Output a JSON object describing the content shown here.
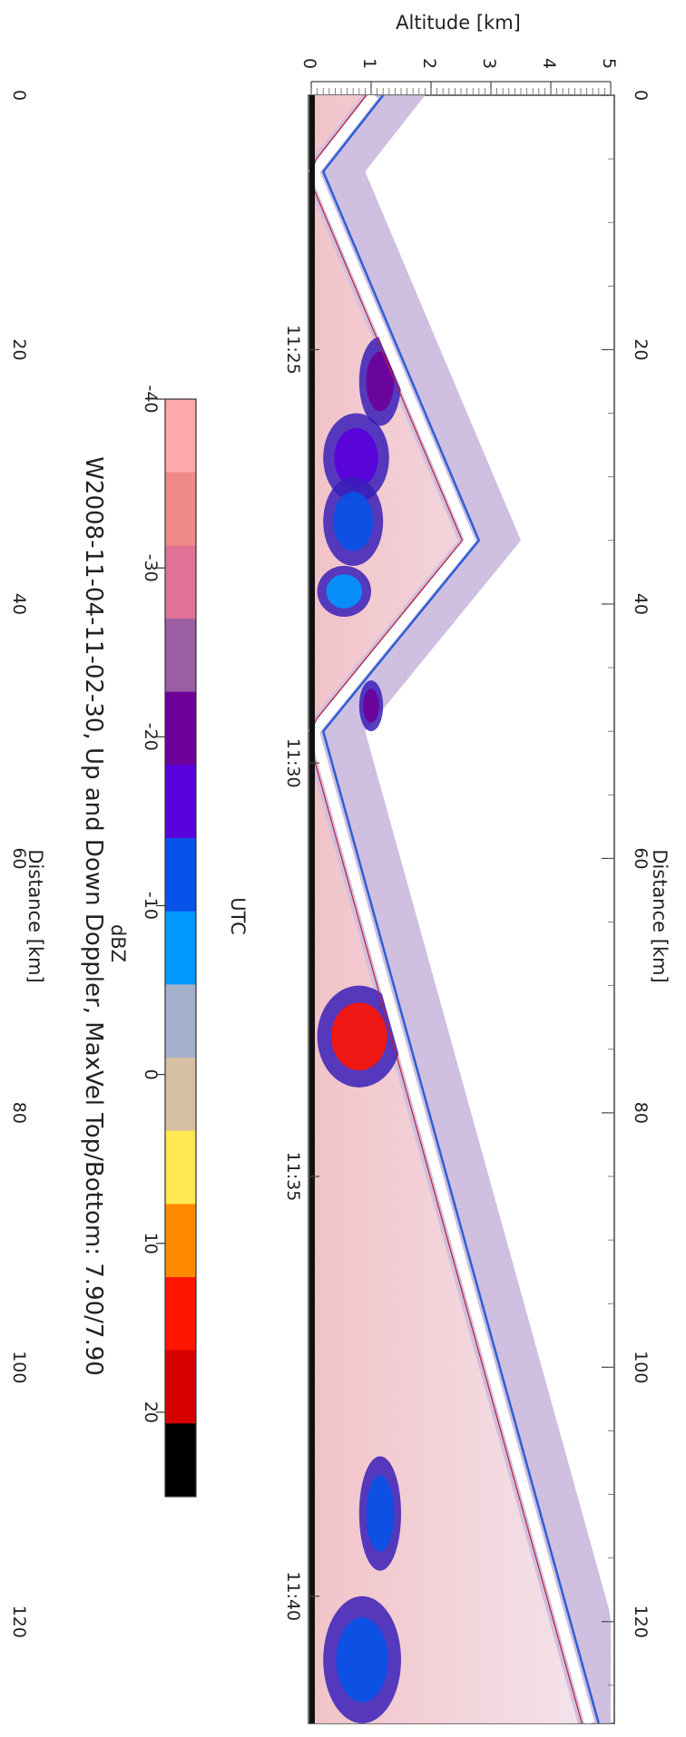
{
  "chart_data": {
    "type": "heatmap",
    "title": "W2008-11-04-11-02-30, Up and Down Doppler, MaxVel Top/Bottom: 7.90/7.90",
    "xlabel_top": "Distance [km]",
    "xlabel_bottom": "Distance [km]",
    "xlabel_time": "UTC",
    "ylabel": "Altitude [km]",
    "x_range_km": [
      0,
      128
    ],
    "y_range_km": [
      0,
      5
    ],
    "x_ticks_top": [
      "0",
      "20",
      "40",
      "60",
      "80",
      "100",
      "120"
    ],
    "x_ticks_bottom": [
      "0",
      "20",
      "40",
      "60",
      "80",
      "100",
      "120"
    ],
    "time_ticks": [
      "11:25",
      "11:30",
      "11:35",
      "11:40"
    ],
    "time_tick_km": [
      20.0,
      52.5,
      85.0,
      118.0
    ],
    "y_ticks": [
      "0",
      "1",
      "2",
      "3",
      "4",
      "5"
    ],
    "aircraft_track": {
      "distance_km": [
        0,
        6,
        35,
        50,
        128
      ],
      "altitude_km": [
        1.2,
        0.2,
        2.8,
        0.2,
        4.8
      ]
    },
    "echo_cells": [
      {
        "distance_km": [
          19,
          26
        ],
        "altitude_km": [
          0.8,
          1.5
        ],
        "max_dbz": -20
      },
      {
        "distance_km": [
          25,
          32
        ],
        "altitude_km": [
          0.2,
          1.3
        ],
        "max_dbz": -15
      },
      {
        "distance_km": [
          30,
          37
        ],
        "altitude_km": [
          0.2,
          1.2
        ],
        "max_dbz": -10
      },
      {
        "distance_km": [
          37,
          41
        ],
        "altitude_km": [
          0.1,
          1.0
        ],
        "max_dbz": -5
      },
      {
        "distance_km": [
          46,
          50
        ],
        "altitude_km": [
          0.8,
          1.2
        ],
        "max_dbz": -20
      },
      {
        "distance_km": [
          70,
          78
        ],
        "altitude_km": [
          0.1,
          1.5
        ],
        "max_dbz": 20
      },
      {
        "distance_km": [
          107,
          116
        ],
        "altitude_km": [
          0.8,
          1.5
        ],
        "max_dbz": -12
      },
      {
        "distance_km": [
          118,
          128
        ],
        "altitude_km": [
          0.2,
          1.5
        ],
        "max_dbz": -8
      }
    ],
    "colorbar": {
      "label": "dBZ",
      "range": [
        -40,
        25
      ],
      "ticks": [
        "-40",
        "-30",
        "-20",
        "-10",
        "0",
        "10",
        "20"
      ],
      "colors": [
        "#fca9a9",
        "#f08a86",
        "#df7295",
        "#9a5ea2",
        "#6c0099",
        "#5a00dd",
        "#0752e8",
        "#0097ff",
        "#a3b1cc",
        "#d6bfa3",
        "#ffe852",
        "#ff8a00",
        "#ff1400",
        "#d60000",
        "#000000"
      ]
    }
  }
}
